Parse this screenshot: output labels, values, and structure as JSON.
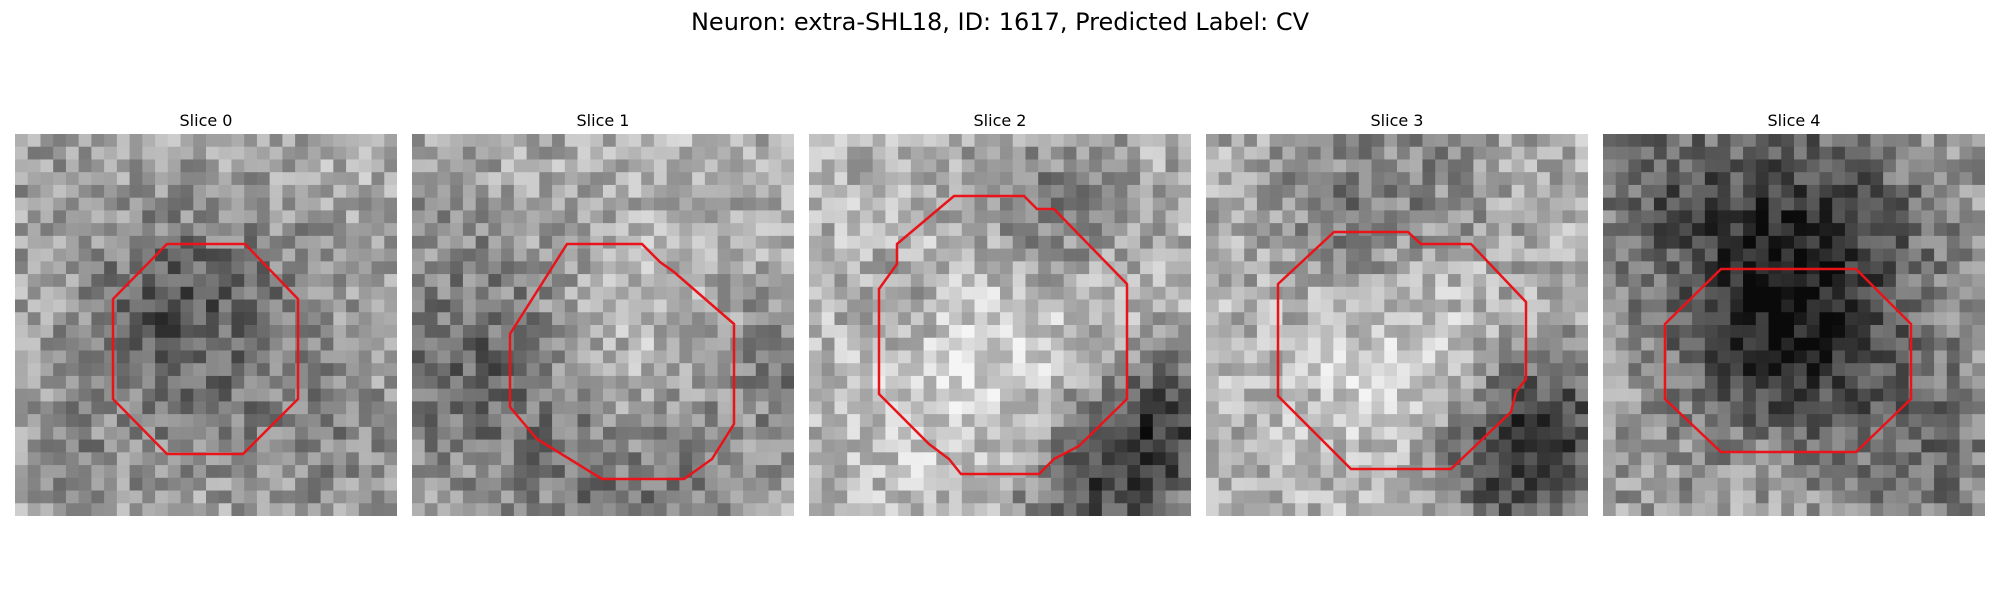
{
  "figure": {
    "title": "Neuron: extra-SHL18, ID: 1617, Predicted Label: CV"
  },
  "panels": [
    {
      "title": "Slice 0"
    },
    {
      "title": "Slice 1"
    },
    {
      "title": "Slice 2"
    },
    {
      "title": "Slice 3"
    },
    {
      "title": "Slice 4"
    }
  ],
  "style": {
    "contour_color": "#e8141a",
    "colormap": "grayscale"
  }
}
